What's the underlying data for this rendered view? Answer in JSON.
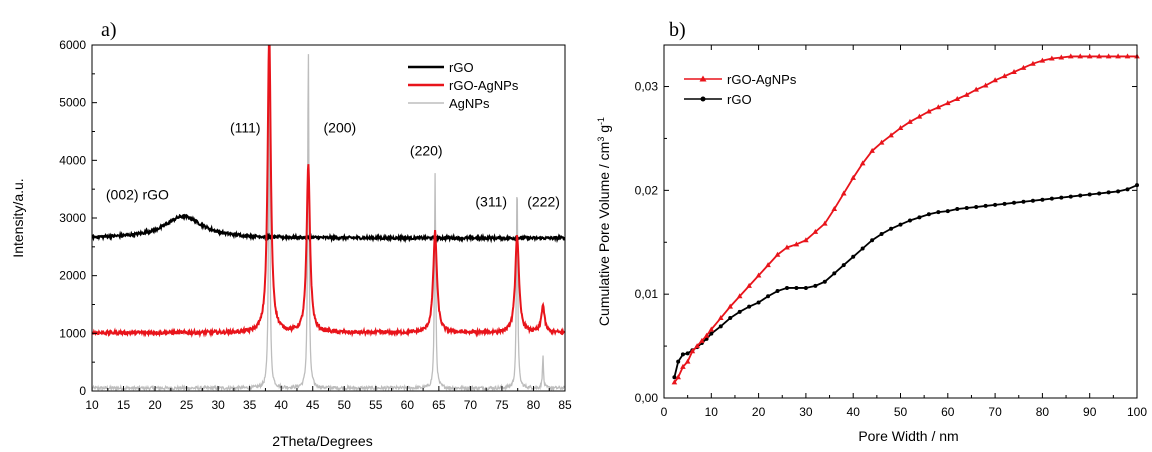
{
  "colors": {
    "rgo": "#000000",
    "rgo_agnps": "#e8141b",
    "agnps": "#bdbdbd"
  },
  "chart_data": [
    {
      "type": "line",
      "panel_label": "a)",
      "xlabel": "2Theta/Degrees",
      "ylabel": "Intensity/a.u.",
      "xlim": [
        10,
        85
      ],
      "ylim": [
        0,
        6000
      ],
      "xticks": [
        "10",
        "15",
        "20",
        "25",
        "30",
        "35",
        "40",
        "45",
        "50",
        "55",
        "60",
        "65",
        "70",
        "75",
        "80",
        "85"
      ],
      "yticks": [
        "0",
        "1000",
        "2000",
        "3000",
        "4000",
        "5000",
        "6000"
      ],
      "legend": [
        "rGO",
        "rGO-AgNPs",
        "AgNPs"
      ],
      "legend_position": "top-right",
      "annotations": [
        "(002) rGO",
        "(111)",
        "(200)",
        "(220)",
        "(311)",
        "(222)"
      ],
      "series": [
        {
          "name": "rGO",
          "baseline": 2650,
          "noise": 25,
          "peaks": [
            {
              "x": 24.5,
              "height": 380,
              "width": 3.6
            }
          ]
        },
        {
          "name": "rGO-AgNPs",
          "baseline": 1010,
          "noise": 30,
          "peaks": [
            {
              "x": 38.1,
              "height": 5200,
              "width": 0.3
            },
            {
              "x": 44.3,
              "height": 2900,
              "width": 0.32
            },
            {
              "x": 64.4,
              "height": 1750,
              "width": 0.35
            },
            {
              "x": 77.4,
              "height": 1700,
              "width": 0.35
            },
            {
              "x": 81.5,
              "height": 470,
              "width": 0.3
            }
          ]
        },
        {
          "name": "AgNPs",
          "baseline": 50,
          "noise": 30,
          "peaks": [
            {
              "x": 38.1,
              "height": 6000,
              "width": 0.12
            },
            {
              "x": 44.3,
              "height": 5950,
              "width": 0.12
            },
            {
              "x": 64.4,
              "height": 3700,
              "width": 0.12
            },
            {
              "x": 77.4,
              "height": 3650,
              "width": 0.12
            },
            {
              "x": 81.5,
              "height": 560,
              "width": 0.1
            }
          ]
        }
      ]
    },
    {
      "type": "line",
      "panel_label": "b)",
      "xlabel": "Pore Width / nm",
      "ylabel": "Cumulative Pore Volume / cm",
      "ylabel_sup1": "3",
      "ylabel_mid": " g",
      "ylabel_sup2": "-1",
      "xlim": [
        0,
        100
      ],
      "ylim": [
        0,
        0.034
      ],
      "xticks": [
        "0",
        "10",
        "20",
        "30",
        "40",
        "50",
        "60",
        "70",
        "80",
        "90",
        "100"
      ],
      "yticks": [
        "0,00",
        "0,01",
        "0,02",
        "0,03"
      ],
      "legend": [
        "rGO-AgNPs",
        "rGO"
      ],
      "legend_position": "top-left",
      "series": [
        {
          "name": "rGO-AgNPs",
          "marker": "triangle",
          "x": [
            2.2,
            3,
            4,
            5,
            6,
            7,
            8,
            9,
            10,
            12,
            14,
            16,
            18,
            20,
            22,
            24,
            26,
            28,
            30,
            32,
            34,
            36,
            38,
            40,
            42,
            44,
            46,
            48,
            50,
            52,
            54,
            56,
            58,
            60,
            62,
            64,
            66,
            68,
            70,
            72,
            74,
            76,
            78,
            80,
            82,
            84,
            86,
            88,
            90,
            92,
            94,
            96,
            98,
            100
          ],
          "y": [
            0.0015,
            0.002,
            0.003,
            0.0035,
            0.0045,
            0.005,
            0.0055,
            0.006,
            0.0066,
            0.0077,
            0.0088,
            0.0098,
            0.0108,
            0.0118,
            0.0128,
            0.0138,
            0.0145,
            0.0148,
            0.0152,
            0.016,
            0.0168,
            0.0182,
            0.0197,
            0.0212,
            0.0226,
            0.0238,
            0.0246,
            0.0253,
            0.026,
            0.0266,
            0.0271,
            0.0276,
            0.028,
            0.0284,
            0.0288,
            0.0292,
            0.0297,
            0.0301,
            0.0306,
            0.031,
            0.0314,
            0.0318,
            0.0322,
            0.0325,
            0.0327,
            0.0328,
            0.0329,
            0.0329,
            0.0329,
            0.0329,
            0.0329,
            0.0329,
            0.0329,
            0.0329
          ]
        },
        {
          "name": "rGO",
          "marker": "circle",
          "x": [
            2.2,
            3,
            4,
            5,
            6,
            7,
            8,
            9,
            10,
            12,
            14,
            16,
            18,
            20,
            22,
            24,
            26,
            28,
            30,
            32,
            34,
            36,
            38,
            40,
            42,
            44,
            46,
            48,
            50,
            52,
            54,
            56,
            58,
            60,
            62,
            64,
            66,
            68,
            70,
            72,
            74,
            76,
            78,
            80,
            82,
            84,
            86,
            88,
            90,
            92,
            94,
            96,
            98,
            100
          ],
          "y": [
            0.002,
            0.0035,
            0.0042,
            0.0043,
            0.0046,
            0.0049,
            0.0053,
            0.0057,
            0.0062,
            0.0069,
            0.0077,
            0.0083,
            0.0088,
            0.0092,
            0.0098,
            0.0103,
            0.0106,
            0.0106,
            0.0106,
            0.0108,
            0.0112,
            0.012,
            0.0128,
            0.0136,
            0.0144,
            0.0152,
            0.0158,
            0.0163,
            0.0167,
            0.0171,
            0.0174,
            0.0177,
            0.0179,
            0.018,
            0.0182,
            0.0183,
            0.0184,
            0.0185,
            0.0186,
            0.0187,
            0.0188,
            0.0189,
            0.019,
            0.0191,
            0.0192,
            0.0193,
            0.0194,
            0.0195,
            0.0196,
            0.0197,
            0.0198,
            0.0199,
            0.0201,
            0.0205
          ]
        }
      ]
    }
  ]
}
